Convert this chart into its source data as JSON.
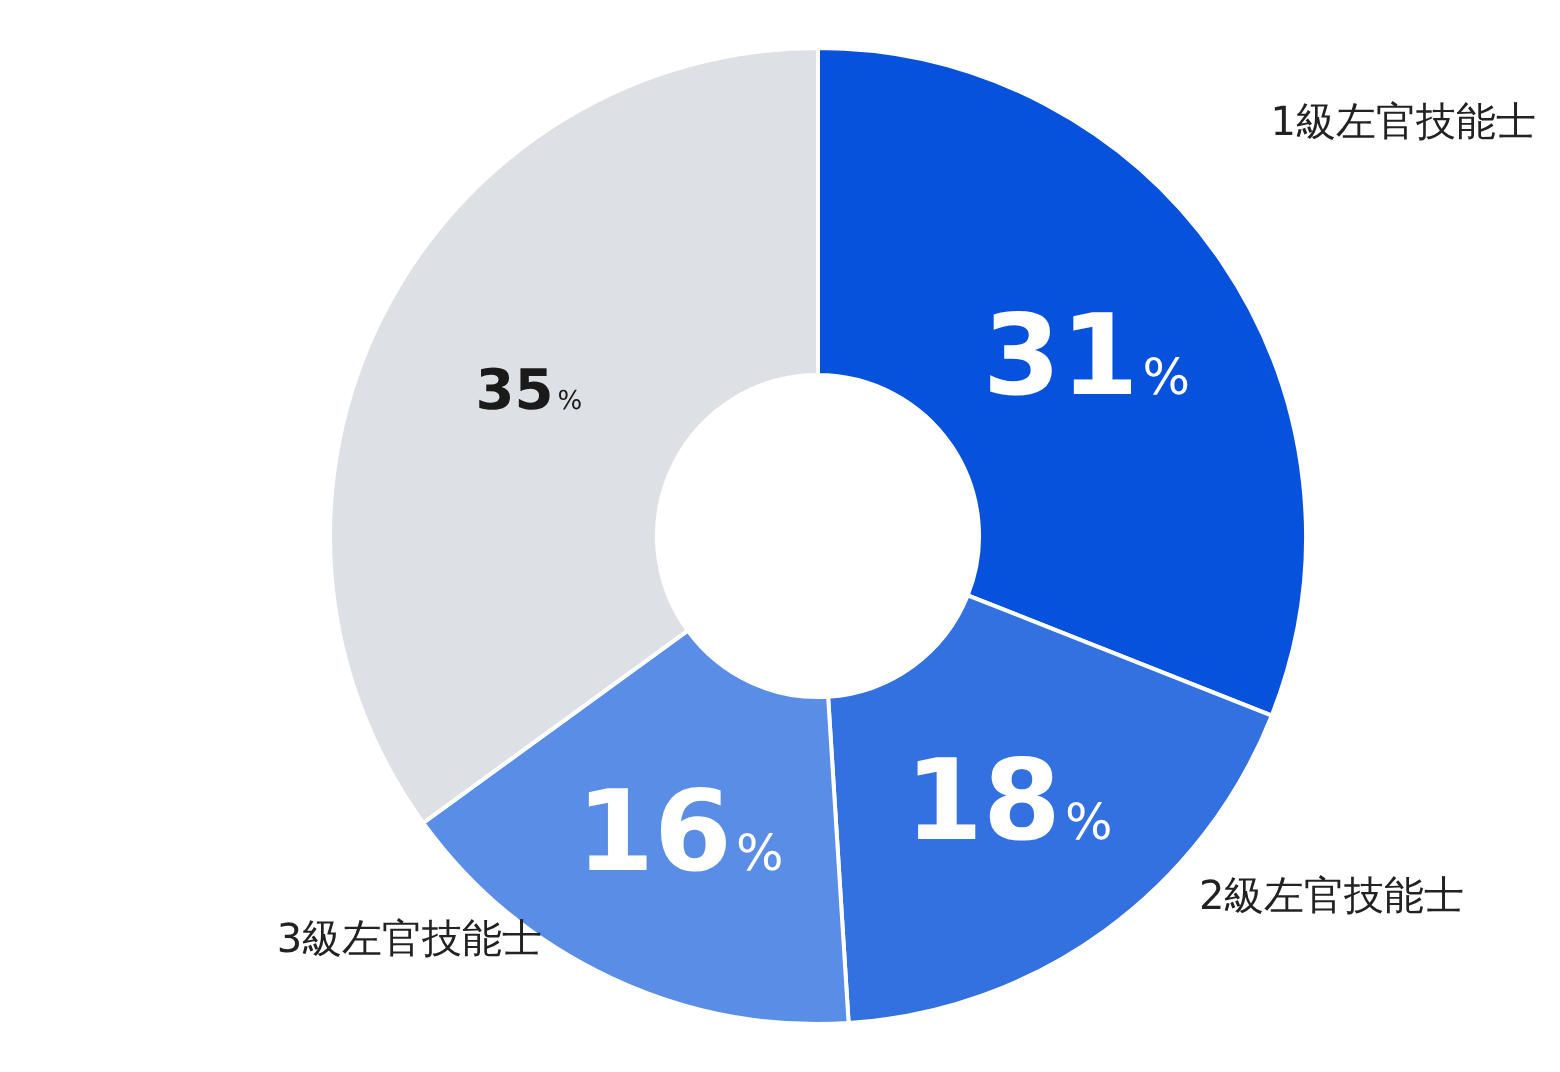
{
  "chart_data": {
    "type": "donut",
    "categories": [
      "1級左官技能士",
      "2級左官技能士",
      "3級左官技能士",
      null
    ],
    "values": [
      31,
      18,
      16,
      35
    ],
    "colors": [
      "#0752dd",
      "#3371e0",
      "#5a8de6",
      "#dde1e6"
    ],
    "value_labels": [
      "31%",
      "18%",
      "16%",
      "35%"
    ]
  }
}
